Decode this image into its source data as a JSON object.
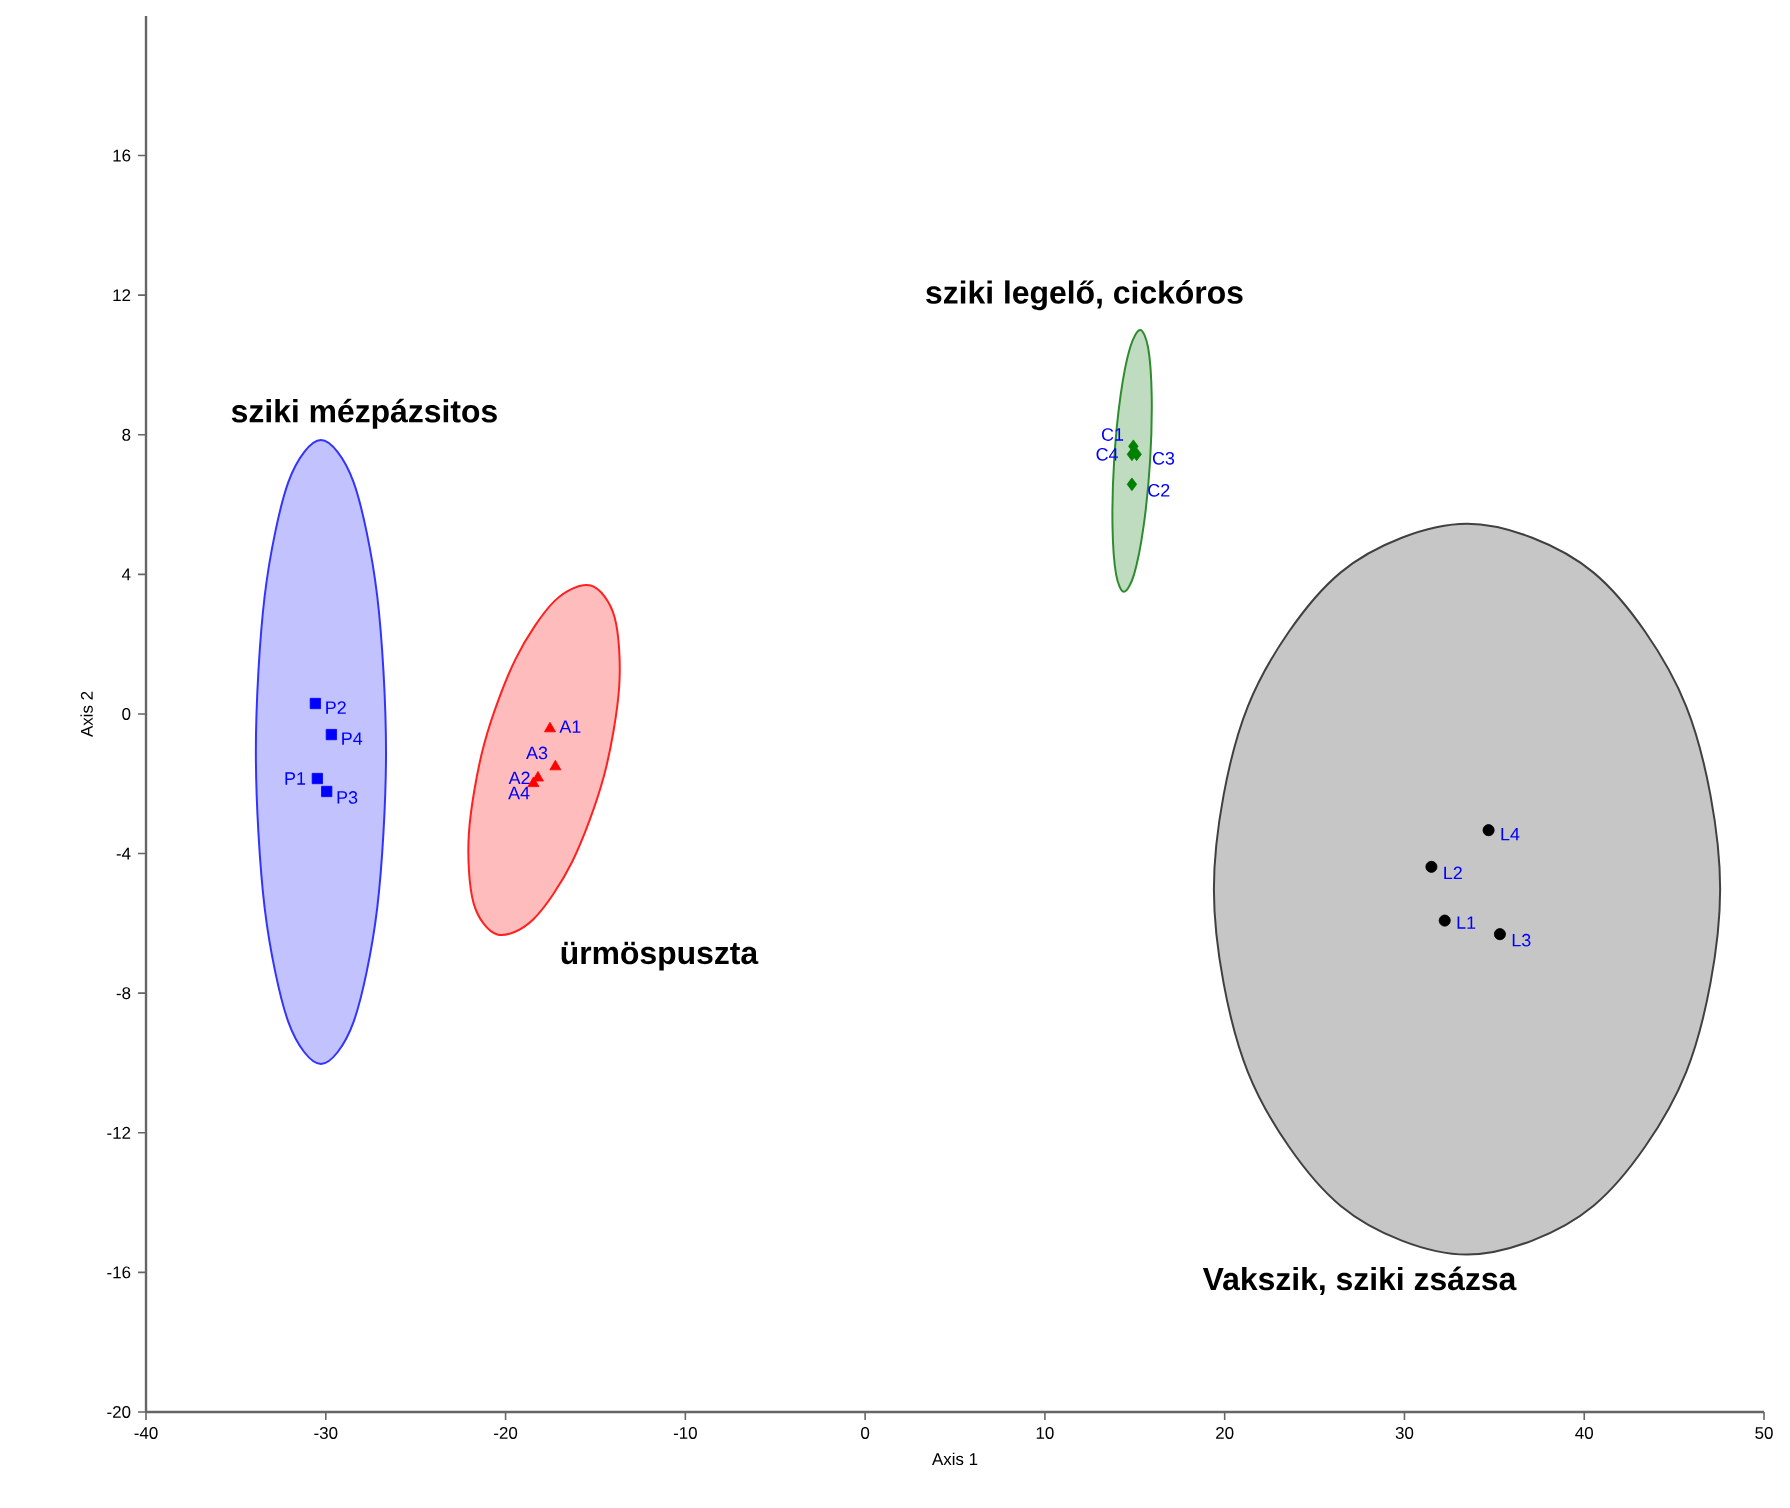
{
  "chart_data": {
    "type": "scatter",
    "xlabel": "Axis 1",
    "ylabel": "Axis 2",
    "xlim": [
      -40,
      50
    ],
    "xticks": [
      -40,
      -30,
      -20,
      -10,
      0,
      10,
      20,
      30,
      40,
      50
    ],
    "ylim": [
      -20,
      20
    ],
    "yticks": [
      -20,
      -16,
      -12,
      -8,
      -4,
      0,
      4,
      8,
      12,
      16
    ],
    "grid": false,
    "series": [
      {
        "type": "area",
        "color": "#3333ff",
        "x": [
          -26.65,
          -27.14,
          -28.46,
          -30.27,
          -32.08,
          -33.4,
          -33.89,
          -33.4,
          -32.08,
          -30.27,
          -28.46,
          -27.14
        ],
        "values": [
          -1.09,
          3.38,
          6.65,
          7.85,
          6.65,
          3.38,
          -1.09,
          -5.56,
          -8.83,
          -10.03,
          -8.83,
          -5.56
        ]
      },
      {
        "type": "area",
        "color": "#ff2020",
        "x": [
          -14.53,
          -13.68,
          -13.94,
          -15.26,
          -17.27,
          -19.44,
          -21.19,
          -22.04,
          -21.78,
          -20.46,
          -18.45,
          -16.28
        ],
        "values": [
          -1.78,
          0.78,
          2.78,
          3.68,
          3.24,
          1.58,
          -0.86,
          -3.42,
          -5.42,
          -6.32,
          -5.88,
          -4.22
        ]
      },
      {
        "type": "area",
        "color": "#2e8b2e",
        "x": [
          15.85,
          15.94,
          15.74,
          15.3,
          14.74,
          14.21,
          13.85,
          13.76,
          13.96,
          14.4,
          14.96,
          15.49
        ],
        "values": [
          7.25,
          9.13,
          10.5,
          11.0,
          10.5,
          9.13,
          7.25,
          5.38,
          4.0,
          3.5,
          4.0,
          5.38
        ]
      },
      {
        "type": "area",
        "color": "#404040",
        "x": [
          47.56,
          45.67,
          40.52,
          33.48,
          26.44,
          21.29,
          19.4,
          21.29,
          26.44,
          33.48,
          40.52,
          45.67
        ],
        "values": [
          -5.02,
          0.22,
          4.05,
          5.45,
          4.05,
          0.22,
          -5.02,
          -10.26,
          -14.09,
          -15.49,
          -14.09,
          -10.26
        ]
      },
      {
        "marker": "square",
        "color": "#0000ff",
        "x": [
          -30.47,
          -30.58,
          -29.95,
          -29.69
        ],
        "values": [
          -1.85,
          0.3,
          -2.22,
          -0.59
        ]
      },
      {
        "marker": "triangle",
        "color": "#ff0000",
        "x": [
          -17.53,
          -18.2,
          -17.23,
          -18.45
        ],
        "values": [
          -0.42,
          -1.83,
          -1.51,
          -1.99
        ]
      },
      {
        "marker": "diamond",
        "color": "#008000",
        "x": [
          14.92,
          14.84,
          15.1,
          14.84
        ],
        "values": [
          7.67,
          6.58,
          7.44,
          7.44
        ]
      },
      {
        "marker": "circle",
        "color": "#000000",
        "x": [
          32.24,
          31.5,
          35.31,
          34.68
        ],
        "values": [
          -5.92,
          -4.38,
          -6.31,
          -3.33
        ]
      }
    ],
    "annotations": [
      "sziki mézpázsitos",
      "ürmöspuszta",
      "sziki legelő, cickóros",
      "Vakszik, sziki zsázsa",
      {
        "text": "P1",
        "x": -30.47,
        "y": -1.85
      },
      {
        "text": "P2",
        "x": -30.58,
        "y": 0.3
      },
      {
        "text": "P3",
        "x": -29.95,
        "y": -2.22
      },
      {
        "text": "P4",
        "x": -29.69,
        "y": -0.59
      },
      {
        "text": "A1",
        "x": -17.53,
        "y": -0.42
      },
      {
        "text": "A2",
        "x": -18.2,
        "y": -1.83
      },
      {
        "text": "A3",
        "x": -17.23,
        "y": -1.51
      },
      {
        "text": "A4",
        "x": -18.45,
        "y": -1.99
      },
      {
        "text": "C1",
        "x": 14.92,
        "y": 7.67
      },
      {
        "text": "C2",
        "x": 14.84,
        "y": 6.58
      },
      {
        "text": "C3",
        "x": 15.1,
        "y": 7.44
      },
      {
        "text": "C4",
        "x": 14.84,
        "y": 7.44
      },
      {
        "text": "L1",
        "x": 32.24,
        "y": -5.92
      },
      {
        "text": "L2",
        "x": 31.5,
        "y": -4.38
      },
      {
        "text": "L3",
        "x": 35.31,
        "y": -6.31
      },
      {
        "text": "L4",
        "x": 34.68,
        "y": -3.33
      }
    ]
  }
}
